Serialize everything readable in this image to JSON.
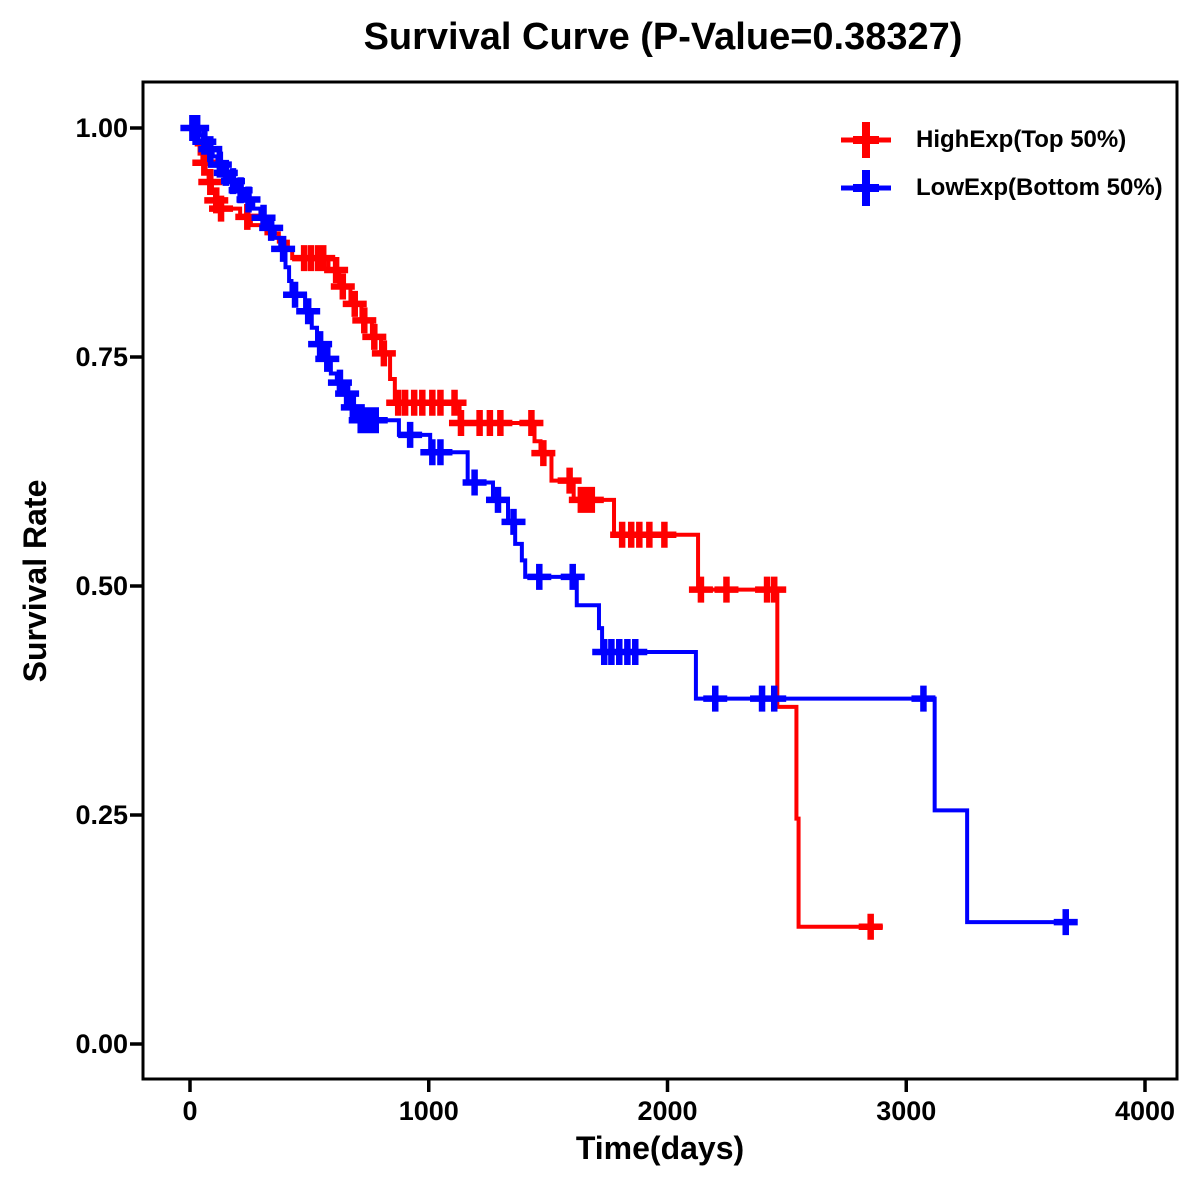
{
  "title": "Survival Curve (P-Value=0.38327)",
  "axes": {
    "x_label": "Time(days)",
    "y_label": "Survival Rate",
    "x_ticks": [
      {
        "label": "0",
        "value": 0
      },
      {
        "label": "1000",
        "value": 1000
      },
      {
        "label": "2000",
        "value": 2000
      },
      {
        "label": "3000",
        "value": 3000
      },
      {
        "label": "4000",
        "value": 4000
      }
    ],
    "y_ticks": [
      {
        "label": "0.00",
        "value": 0.0
      },
      {
        "label": "0.25",
        "value": 0.25
      },
      {
        "label": "0.50",
        "value": 0.5
      },
      {
        "label": "0.75",
        "value": 0.75
      },
      {
        "label": "1.00",
        "value": 1.0
      }
    ]
  },
  "legend": [
    {
      "label": "HighExp(Top 50%)",
      "color": "#ff0000"
    },
    {
      "label": "LowExp(Bottom 50%)",
      "color": "#0000ff"
    }
  ],
  "chart_data": {
    "type": "line",
    "subtype": "kaplan-meier-step-function",
    "title": "Survival Curve (P-Value=0.38327)",
    "p_value": "0.38327",
    "xlabel": "Time(days)",
    "ylabel": "Survival Rate",
    "xlim": [
      0,
      4000
    ],
    "ylim": [
      0.0,
      1.0
    ],
    "grid": false,
    "legend_position": "top-right-inside",
    "series": [
      {
        "name": "HighExp(Top 50%)",
        "color": "#ff0000",
        "end_time": 2902,
        "steps": [
          [
            0,
            1.0
          ],
          [
            15,
            0.991
          ],
          [
            28,
            0.982
          ],
          [
            40,
            0.972
          ],
          [
            52,
            0.962
          ],
          [
            65,
            0.952
          ],
          [
            78,
            0.941
          ],
          [
            92,
            0.931
          ],
          [
            105,
            0.921
          ],
          [
            118,
            0.912
          ],
          [
            210,
            0.903
          ],
          [
            255,
            0.894
          ],
          [
            320,
            0.885
          ],
          [
            372,
            0.876
          ],
          [
            410,
            0.867
          ],
          [
            428,
            0.858
          ],
          [
            580,
            0.845
          ],
          [
            625,
            0.827
          ],
          [
            672,
            0.808
          ],
          [
            718,
            0.79
          ],
          [
            762,
            0.772
          ],
          [
            800,
            0.754
          ],
          [
            838,
            0.726
          ],
          [
            858,
            0.7
          ],
          [
            1129,
            0.678
          ],
          [
            1443,
            0.658
          ],
          [
            1468,
            0.645
          ],
          [
            1514,
            0.615
          ],
          [
            1607,
            0.594
          ],
          [
            1776,
            0.556
          ],
          [
            2128,
            0.496
          ],
          [
            2460,
            0.368
          ],
          [
            2540,
            0.246
          ],
          [
            2549,
            0.128
          ]
        ],
        "censor_times": [
          60,
          85,
          110,
          130,
          240,
          478,
          507,
          537,
          558,
          612,
          640,
          690,
          730,
          772,
          812,
          872,
          901,
          939,
          973,
          1015,
          1049,
          1108,
          1135,
          1213,
          1256,
          1300,
          1430,
          1480,
          1590,
          1637,
          1662,
          1683,
          1810,
          1848,
          1882,
          1924,
          1987,
          2140,
          2247,
          2417,
          2447,
          2851
        ]
      },
      {
        "name": "LowExp(Bottom 50%)",
        "color": "#0000ff",
        "end_time": 3715,
        "steps": [
          [
            0,
            1.0
          ],
          [
            38,
            0.992
          ],
          [
            55,
            0.985
          ],
          [
            72,
            0.977
          ],
          [
            95,
            0.969
          ],
          [
            115,
            0.96
          ],
          [
            140,
            0.951
          ],
          [
            170,
            0.942
          ],
          [
            200,
            0.932
          ],
          [
            232,
            0.922
          ],
          [
            265,
            0.912
          ],
          [
            295,
            0.902
          ],
          [
            325,
            0.891
          ],
          [
            355,
            0.88
          ],
          [
            378,
            0.868
          ],
          [
            400,
            0.848
          ],
          [
            415,
            0.833
          ],
          [
            425,
            0.818
          ],
          [
            482,
            0.8
          ],
          [
            510,
            0.782
          ],
          [
            532,
            0.764
          ],
          [
            562,
            0.748
          ],
          [
            590,
            0.732
          ],
          [
            615,
            0.722
          ],
          [
            645,
            0.71
          ],
          [
            668,
            0.695
          ],
          [
            700,
            0.681
          ],
          [
            875,
            0.665
          ],
          [
            1006,
            0.646
          ],
          [
            1163,
            0.613
          ],
          [
            1269,
            0.594
          ],
          [
            1332,
            0.57
          ],
          [
            1362,
            0.546
          ],
          [
            1390,
            0.528
          ],
          [
            1404,
            0.51
          ],
          [
            1620,
            0.479
          ],
          [
            1713,
            0.454
          ],
          [
            1726,
            0.428
          ],
          [
            2119,
            0.377
          ],
          [
            3119,
            0.255
          ],
          [
            3255,
            0.133
          ]
        ],
        "censor_times": [
          10,
          30,
          60,
          85,
          125,
          150,
          180,
          212,
          245,
          308,
          340,
          390,
          440,
          495,
          545,
          575,
          628,
          658,
          682,
          715,
          735,
          758,
          778,
          922,
          1015,
          1049,
          1192,
          1290,
          1355,
          1463,
          1603,
          1735,
          1765,
          1798,
          1832,
          1865,
          2200,
          2396,
          2447,
          3072,
          3668
        ]
      }
    ]
  }
}
